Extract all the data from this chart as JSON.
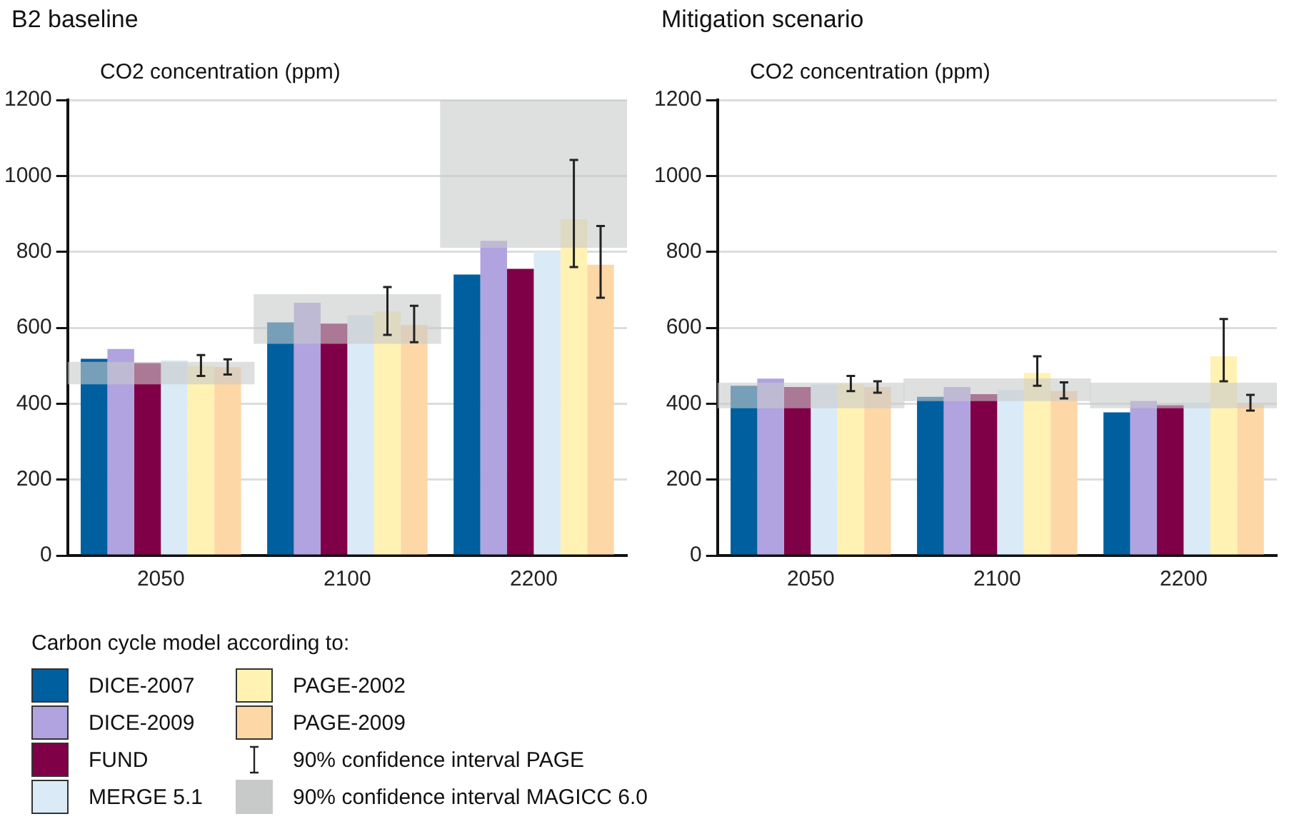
{
  "chart_data": [
    {
      "type": "bar",
      "title": "B2 baseline",
      "ylabel": "CO2 concentration (ppm)",
      "categories": [
        "2050",
        "2100",
        "2200"
      ],
      "ylim": [
        0,
        1200
      ],
      "yticks": [
        0,
        200,
        400,
        600,
        800,
        1000,
        1200
      ],
      "grid": "y",
      "legend": "bottom left",
      "legend_title": "Carbon cycle model according to:",
      "annotations": [
        "90% confidence interval PAGE"
      ],
      "series": [
        {
          "name": "DICE-2007",
          "color": "#005f9f",
          "values": [
            518,
            614,
            740
          ]
        },
        {
          "name": "DICE-2009",
          "color": "#b0a3e0",
          "values": [
            544,
            666,
            829
          ]
        },
        {
          "name": "FUND",
          "color": "#800048",
          "values": [
            507,
            611,
            755
          ]
        },
        {
          "name": "MERGE 5.1",
          "color": "#daebf7",
          "values": [
            514,
            633,
            801
          ]
        },
        {
          "name": "PAGE-2002",
          "color": "#fff2b3",
          "values": [
            499,
            643,
            886
          ],
          "errors": [
            [
              473,
              528
            ],
            [
              581,
              707
            ],
            [
              760,
              1042
            ]
          ]
        },
        {
          "name": "PAGE-2009",
          "color": "#fdd7a6",
          "values": [
            496,
            607,
            766
          ],
          "errors": [
            [
              477,
              517
            ],
            [
              562,
              658
            ],
            [
              679,
              868
            ]
          ]
        },
        {
          "name": "90% confidence interval MAGICC 6.0",
          "type": "bar",
          "color": "#c8c9c9",
          "base": [
            452,
            559,
            812
          ],
          "values": [
            57,
            128,
            388
          ]
        }
      ]
    },
    {
      "type": "bar",
      "title": "Mitigation scenario",
      "ylabel": "CO2 concentration (ppm)",
      "categories": [
        "2050",
        "2100",
        "2200"
      ],
      "ylim": [
        0,
        1200
      ],
      "yticks": [
        0,
        200,
        400,
        600,
        800,
        1000,
        1200
      ],
      "grid": "y",
      "series": [
        {
          "color": "#005f9f",
          "values": [
            447,
            418,
            377
          ]
        },
        {
          "color": "#b0a3e0",
          "values": [
            466,
            444,
            407
          ]
        },
        {
          "color": "#800048",
          "values": [
            444,
            425,
            396
          ]
        },
        {
          "color": "#daebf7",
          "values": [
            451,
            436,
            403
          ]
        },
        {
          "color": "#fff2b3",
          "values": [
            451,
            481,
            525
          ],
          "errors": [
            [
              433,
              473
            ],
            [
              447,
              525
            ],
            [
              459,
              623
            ]
          ]
        },
        {
          "color": "#fdd7a6",
          "values": [
            444,
            433,
            399
          ],
          "errors": [
            [
              429,
              459
            ],
            [
              414,
              456
            ],
            [
              382,
              423
            ]
          ]
        },
        {
          "type": "bar",
          "color": "#c8c9c9",
          "base": [
            389,
            408,
            389
          ],
          "values": [
            65,
            57,
            65
          ]
        }
      ]
    }
  ]
}
